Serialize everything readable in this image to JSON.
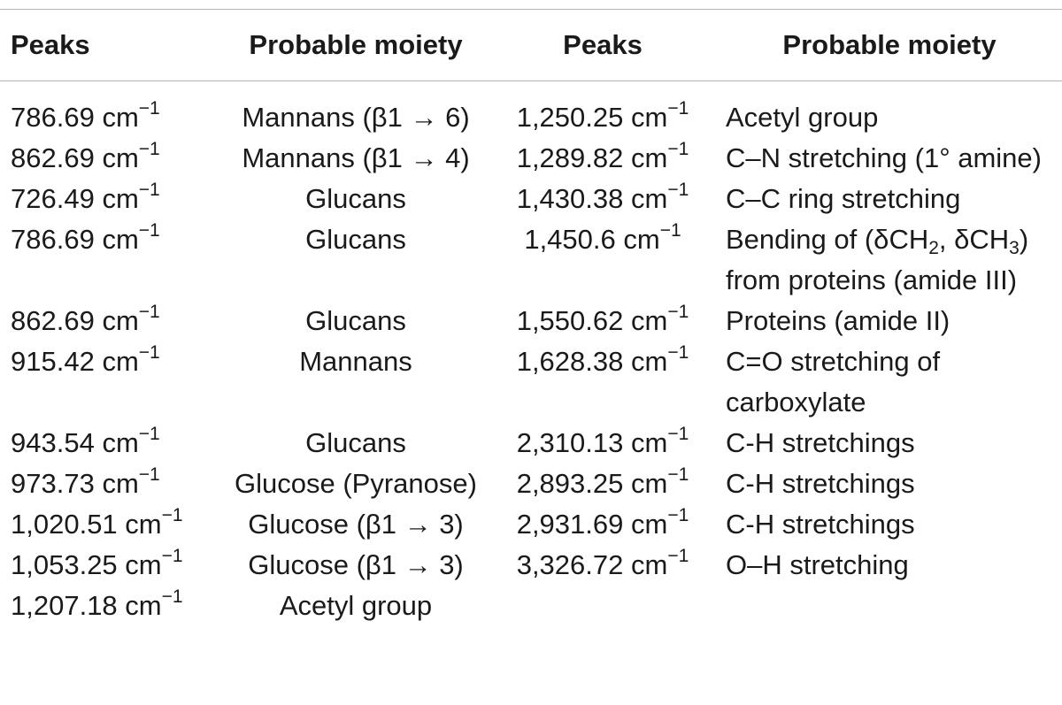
{
  "table": {
    "headers": [
      "Peaks",
      "Probable moiety",
      "Peaks",
      "Probable moiety"
    ],
    "unit": "cm",
    "unit_exponent": "−1",
    "rows": [
      {
        "peak1": "786.69",
        "moiety1": "Mannans (β1 → 6)",
        "peak2": "1,250.25",
        "moiety2": "Acetyl group"
      },
      {
        "peak1": "862.69",
        "moiety1": "Mannans (β1 → 4)",
        "peak2": "1,289.82",
        "moiety2": "C–N stretching (1° amine)"
      },
      {
        "peak1": "726.49",
        "moiety1": "Glucans",
        "peak2": "1,430.38",
        "moiety2": "C–C ring stretching"
      },
      {
        "peak1": "786.69",
        "moiety1": "Glucans",
        "peak2": "1,450.6",
        "moiety2": "Bending of (δCH2, δCH3) from proteins (amide III)"
      },
      {
        "peak1": "862.69",
        "moiety1": "Glucans",
        "peak2": "1,550.62",
        "moiety2": "Proteins (amide II)"
      },
      {
        "peak1": "915.42",
        "moiety1": "Mannans",
        "peak2": "1,628.38",
        "moiety2": "C=O stretching of carboxylate"
      },
      {
        "peak1": "943.54",
        "moiety1": "Glucans",
        "peak2": "2,310.13",
        "moiety2": "C-H stretchings"
      },
      {
        "peak1": "973.73",
        "moiety1": "Glucose (Pyranose)",
        "peak2": "2,893.25",
        "moiety2": "C-H stretchings"
      },
      {
        "peak1": "1,020.51",
        "moiety1": "Glucose (β1 → 3)",
        "peak2": "2,931.69",
        "moiety2": "C-H stretchings"
      },
      {
        "peak1": "1,053.25",
        "moiety1": "Glucose (β1 → 3)",
        "peak2": "3,326.72",
        "moiety2": "O–H stretching"
      },
      {
        "peak1": "1,207.18",
        "moiety1": "Acetyl group",
        "peak2": "",
        "moiety2": ""
      }
    ]
  }
}
